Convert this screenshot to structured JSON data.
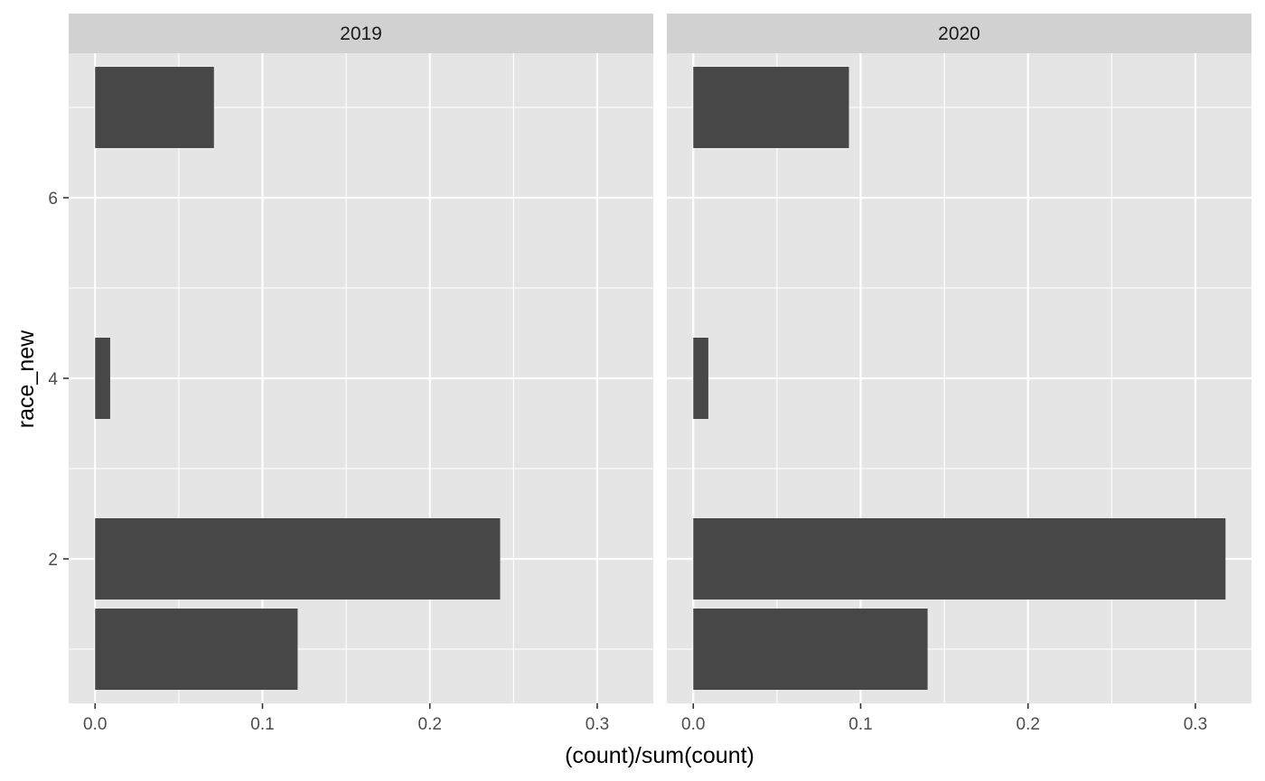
{
  "chart_data": {
    "type": "bar",
    "orientation": "horizontal",
    "xlabel": "(count)/sum(count)",
    "ylabel": "race_new",
    "xlim": [
      -0.0158,
      0.3335
    ],
    "ylim": [
      0.4,
      7.6
    ],
    "x_ticks": [
      0.0,
      0.1,
      0.2,
      0.3
    ],
    "x_tick_labels": [
      "0.0",
      "0.1",
      "0.2",
      "0.3"
    ],
    "y_ticks": [
      2,
      4,
      6
    ],
    "y_tick_labels": [
      "2",
      "4",
      "6"
    ],
    "bar_width": 0.9,
    "grid": true,
    "bar_color": "#474747",
    "panel_background": "#e5e5e5",
    "strip_background": "#d1d1d1",
    "grid_color": "#ffffff",
    "facets": [
      {
        "label": "2019",
        "bars": [
          {
            "y": 1,
            "value": 0.121
          },
          {
            "y": 2,
            "value": 0.242
          },
          {
            "y": 4,
            "value": 0.009
          },
          {
            "y": 7,
            "value": 0.071
          }
        ]
      },
      {
        "label": "2020",
        "bars": [
          {
            "y": 1,
            "value": 0.14
          },
          {
            "y": 2,
            "value": 0.318
          },
          {
            "y": 4,
            "value": 0.009
          },
          {
            "y": 7,
            "value": 0.093
          }
        ]
      }
    ]
  }
}
